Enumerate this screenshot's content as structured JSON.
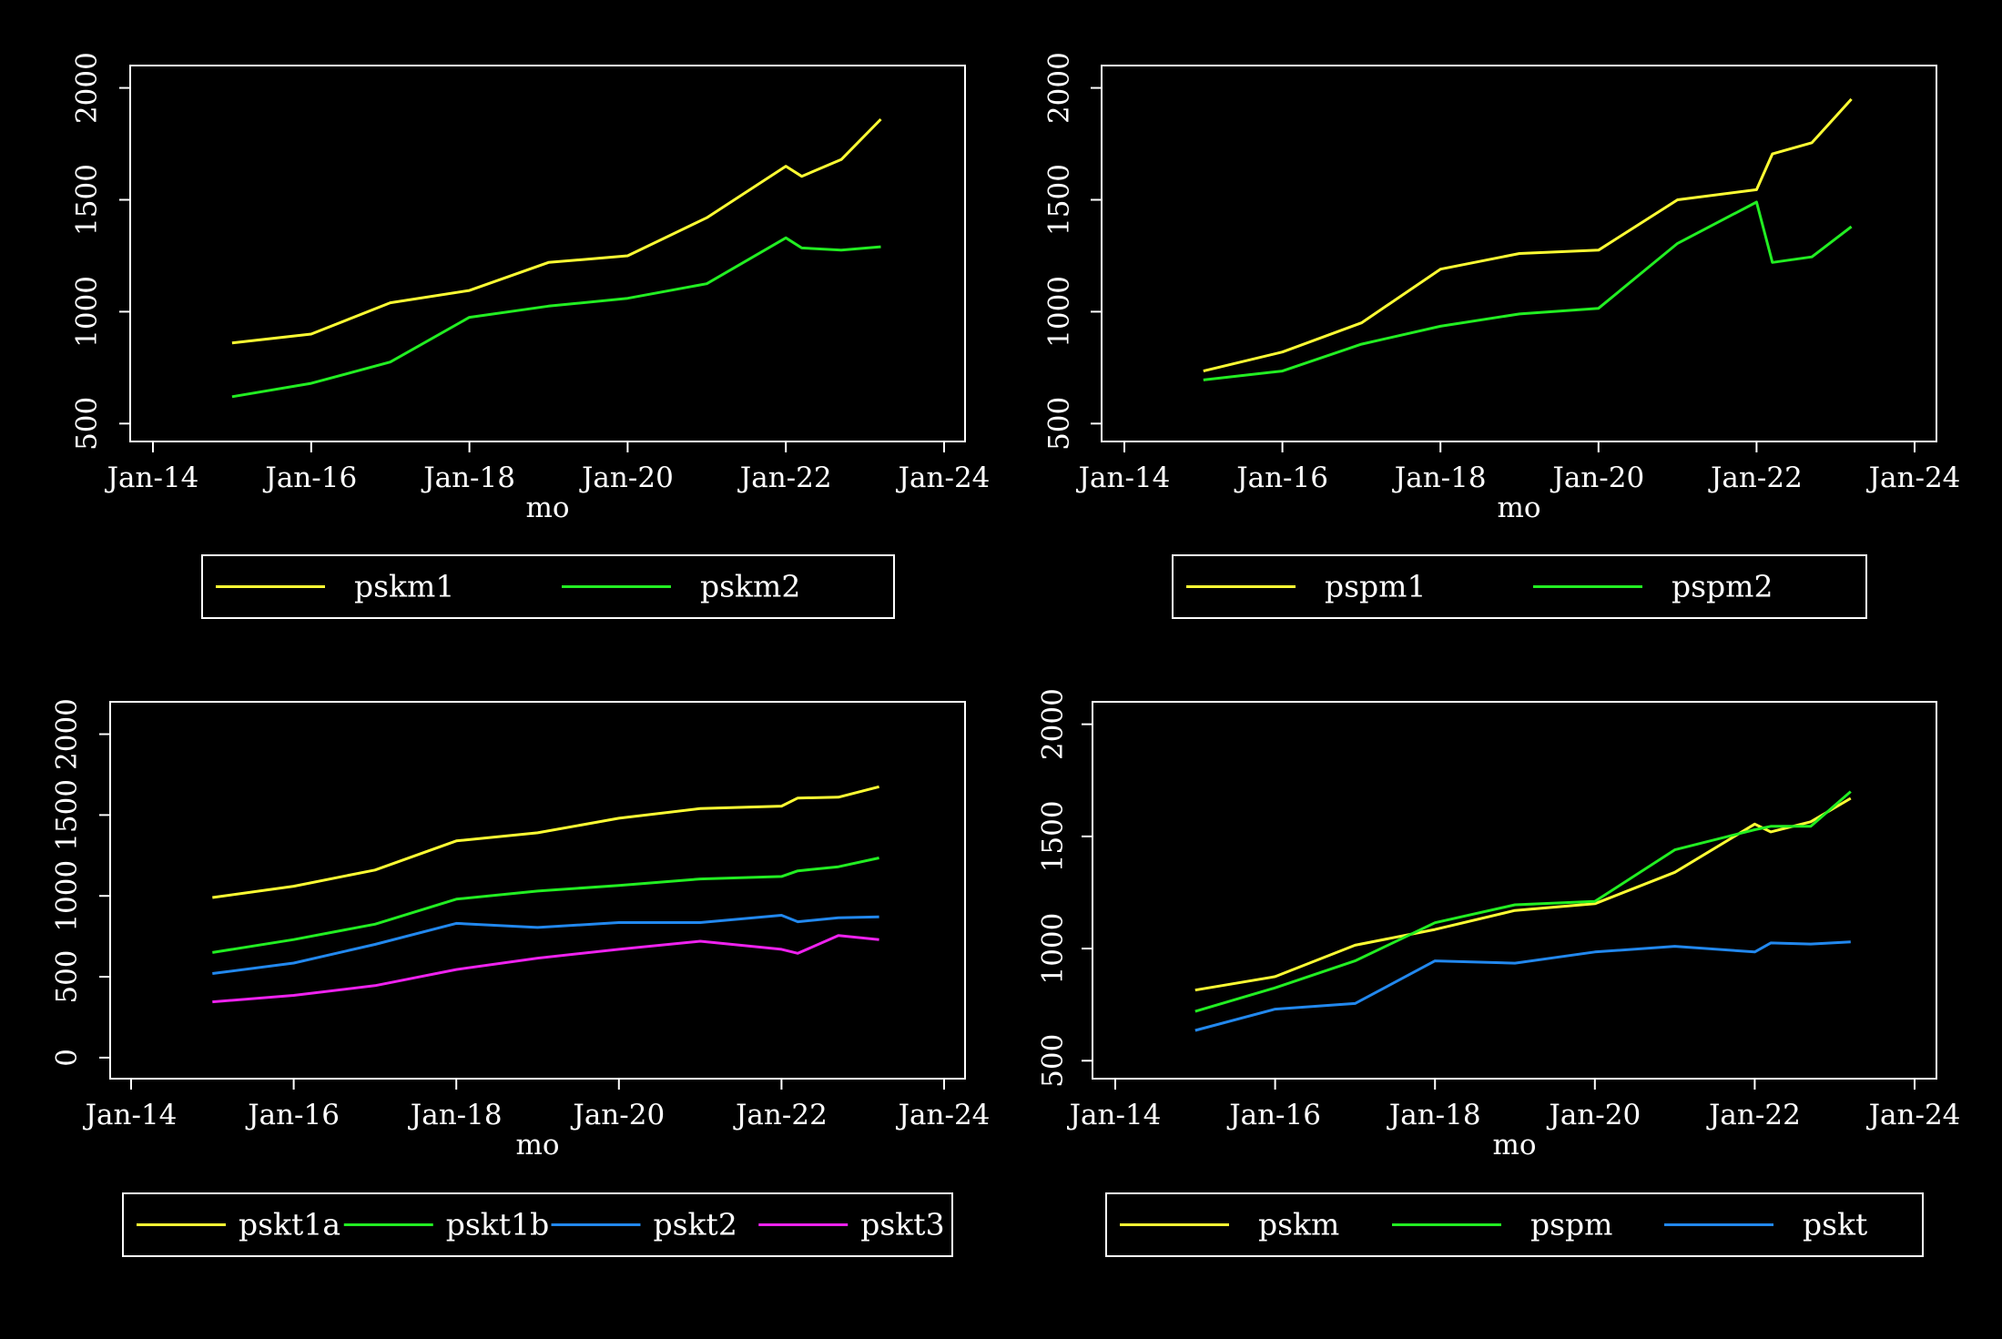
{
  "chart_data": [
    {
      "type": "line",
      "xlabel": "mo",
      "ylabel": "",
      "x_ticks": [
        "Jan-14",
        "Jan-16",
        "Jan-18",
        "Jan-20",
        "Jan-22",
        "Jan-24"
      ],
      "x_range": [
        2014.0,
        2024.0
      ],
      "ylim": [
        420,
        2100
      ],
      "y_ticks": [
        500,
        1000,
        1500,
        2000
      ],
      "legend": "bottom",
      "series": [
        {
          "name": "pskm1",
          "color": "#ffff33",
          "x": [
            2015.0,
            2016.0,
            2017.0,
            2018.0,
            2019.0,
            2020.0,
            2021.0,
            2022.0,
            2022.2,
            2022.7,
            2023.2
          ],
          "values": [
            860,
            900,
            1040,
            1095,
            1220,
            1250,
            1420,
            1650,
            1605,
            1680,
            1860
          ]
        },
        {
          "name": "pskm2",
          "color": "#22ee22",
          "x": [
            2015.0,
            2016.0,
            2017.0,
            2018.0,
            2019.0,
            2020.0,
            2021.0,
            2022.0,
            2022.2,
            2022.7,
            2023.2
          ],
          "values": [
            620,
            680,
            775,
            975,
            1025,
            1060,
            1125,
            1330,
            1285,
            1275,
            1290
          ]
        }
      ]
    },
    {
      "type": "line",
      "xlabel": "mo",
      "ylabel": "",
      "x_ticks": [
        "Jan-14",
        "Jan-16",
        "Jan-18",
        "Jan-20",
        "Jan-22",
        "Jan-24"
      ],
      "x_range": [
        2014.0,
        2024.0
      ],
      "ylim": [
        420,
        2100
      ],
      "y_ticks": [
        500,
        1000,
        1500,
        2000
      ],
      "legend": "bottom",
      "series": [
        {
          "name": "pspm1",
          "color": "#ffff33",
          "x": [
            2015.0,
            2016.0,
            2017.0,
            2018.0,
            2019.0,
            2020.0,
            2021.0,
            2022.0,
            2022.2,
            2022.7,
            2023.2
          ],
          "values": [
            735,
            820,
            950,
            1190,
            1260,
            1275,
            1500,
            1545,
            1705,
            1755,
            1950
          ]
        },
        {
          "name": "pspm2",
          "color": "#22ee22",
          "x": [
            2015.0,
            2016.0,
            2017.0,
            2018.0,
            2019.0,
            2020.0,
            2021.0,
            2022.0,
            2022.2,
            2022.7,
            2023.2
          ],
          "values": [
            695,
            735,
            855,
            935,
            990,
            1015,
            1305,
            1490,
            1220,
            1245,
            1380
          ]
        }
      ]
    },
    {
      "type": "line",
      "xlabel": "mo",
      "ylabel": "",
      "x_ticks": [
        "Jan-14",
        "Jan-16",
        "Jan-18",
        "Jan-20",
        "Jan-22",
        "Jan-24"
      ],
      "x_range": [
        2014.0,
        2024.0
      ],
      "ylim": [
        -130,
        2200
      ],
      "y_ticks": [
        0,
        500,
        1000,
        1500,
        2000
      ],
      "legend": "bottom",
      "series": [
        {
          "name": "pskt1a",
          "color": "#ffff33",
          "x": [
            2015.0,
            2016.0,
            2017.0,
            2018.0,
            2019.0,
            2020.0,
            2021.0,
            2022.0,
            2022.2,
            2022.7,
            2023.2
          ],
          "values": [
            990,
            1060,
            1160,
            1340,
            1390,
            1480,
            1540,
            1555,
            1605,
            1610,
            1675
          ]
        },
        {
          "name": "pskt1b",
          "color": "#22ee22",
          "x": [
            2015.0,
            2016.0,
            2017.0,
            2018.0,
            2019.0,
            2020.0,
            2021.0,
            2022.0,
            2022.2,
            2022.7,
            2023.2
          ],
          "values": [
            650,
            730,
            825,
            980,
            1030,
            1065,
            1105,
            1120,
            1155,
            1180,
            1235
          ]
        },
        {
          "name": "pskt2",
          "color": "#2288ee",
          "x": [
            2015.0,
            2016.0,
            2017.0,
            2018.0,
            2019.0,
            2020.0,
            2021.0,
            2022.0,
            2022.2,
            2022.7,
            2023.2
          ],
          "values": [
            520,
            585,
            700,
            830,
            805,
            835,
            835,
            880,
            840,
            865,
            870
          ]
        },
        {
          "name": "pskt3",
          "color": "#ee22ee",
          "x": [
            2015.0,
            2016.0,
            2017.0,
            2018.0,
            2019.0,
            2020.0,
            2021.0,
            2022.0,
            2022.2,
            2022.7,
            2023.2
          ],
          "values": [
            345,
            385,
            445,
            545,
            615,
            670,
            720,
            670,
            645,
            755,
            730
          ]
        }
      ]
    },
    {
      "type": "line",
      "xlabel": "mo",
      "ylabel": "",
      "x_ticks": [
        "Jan-14",
        "Jan-16",
        "Jan-18",
        "Jan-20",
        "Jan-22",
        "Jan-24"
      ],
      "x_range": [
        2014.0,
        2024.0
      ],
      "ylim": [
        420,
        2100
      ],
      "y_ticks": [
        500,
        1000,
        1500,
        2000
      ],
      "legend": "bottom",
      "series": [
        {
          "name": "pskm",
          "color": "#ffff33",
          "x": [
            2015.0,
            2016.0,
            2017.0,
            2018.0,
            2019.0,
            2020.0,
            2021.0,
            2022.0,
            2022.2,
            2022.7,
            2023.2
          ],
          "values": [
            815,
            875,
            1015,
            1085,
            1170,
            1200,
            1340,
            1555,
            1520,
            1565,
            1670
          ]
        },
        {
          "name": "pspm",
          "color": "#22ee22",
          "x": [
            2015.0,
            2016.0,
            2017.0,
            2018.0,
            2019.0,
            2020.0,
            2021.0,
            2022.0,
            2022.2,
            2022.7,
            2023.2
          ],
          "values": [
            720,
            825,
            945,
            1115,
            1195,
            1210,
            1440,
            1530,
            1545,
            1545,
            1700
          ]
        },
        {
          "name": "pskt",
          "color": "#2288ee",
          "x": [
            2015.0,
            2016.0,
            2017.0,
            2018.0,
            2019.0,
            2020.0,
            2021.0,
            2022.0,
            2022.2,
            2022.7,
            2023.2
          ],
          "values": [
            635,
            730,
            755,
            945,
            935,
            985,
            1010,
            985,
            1025,
            1020,
            1030
          ]
        }
      ]
    }
  ]
}
